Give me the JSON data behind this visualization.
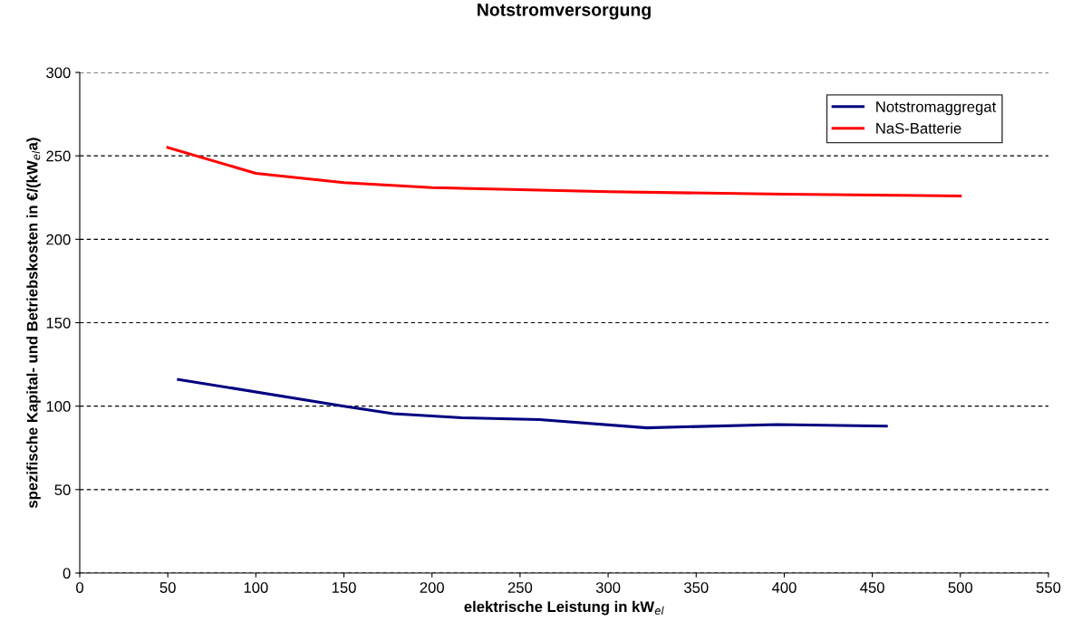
{
  "chart_data": {
    "type": "line",
    "title": "Notstromversorgung",
    "xlabel": "elektrische Leistung in kW$_{el}$",
    "ylabel": "spezifische Kapital- und Betriebskosten in €/(kW$_{el}$a)",
    "series": [
      {
        "name": "Notstromaggregat",
        "color": "#000080",
        "x": [
          56,
          150,
          178,
          217,
          261,
          322,
          396,
          458
        ],
        "values": [
          116,
          100,
          95.5,
          93,
          92,
          87,
          89,
          88
        ]
      },
      {
        "name": "NaS-Batterie",
        "color": "#ff0000",
        "x": [
          50,
          100,
          150,
          200,
          300,
          400,
          500
        ],
        "values": [
          255,
          239.5,
          234,
          231,
          228.5,
          227,
          226
        ]
      }
    ],
    "xlim": [
      0,
      550
    ],
    "xticks": [
      0,
      50,
      100,
      150,
      200,
      250,
      300,
      350,
      400,
      450,
      500,
      550
    ],
    "ylim": [
      0,
      300
    ],
    "yticks": [
      0,
      50,
      100,
      150,
      200,
      250,
      300
    ],
    "grid": "y",
    "legend": "top right",
    "marker": "none",
    "line_style": "solid"
  }
}
